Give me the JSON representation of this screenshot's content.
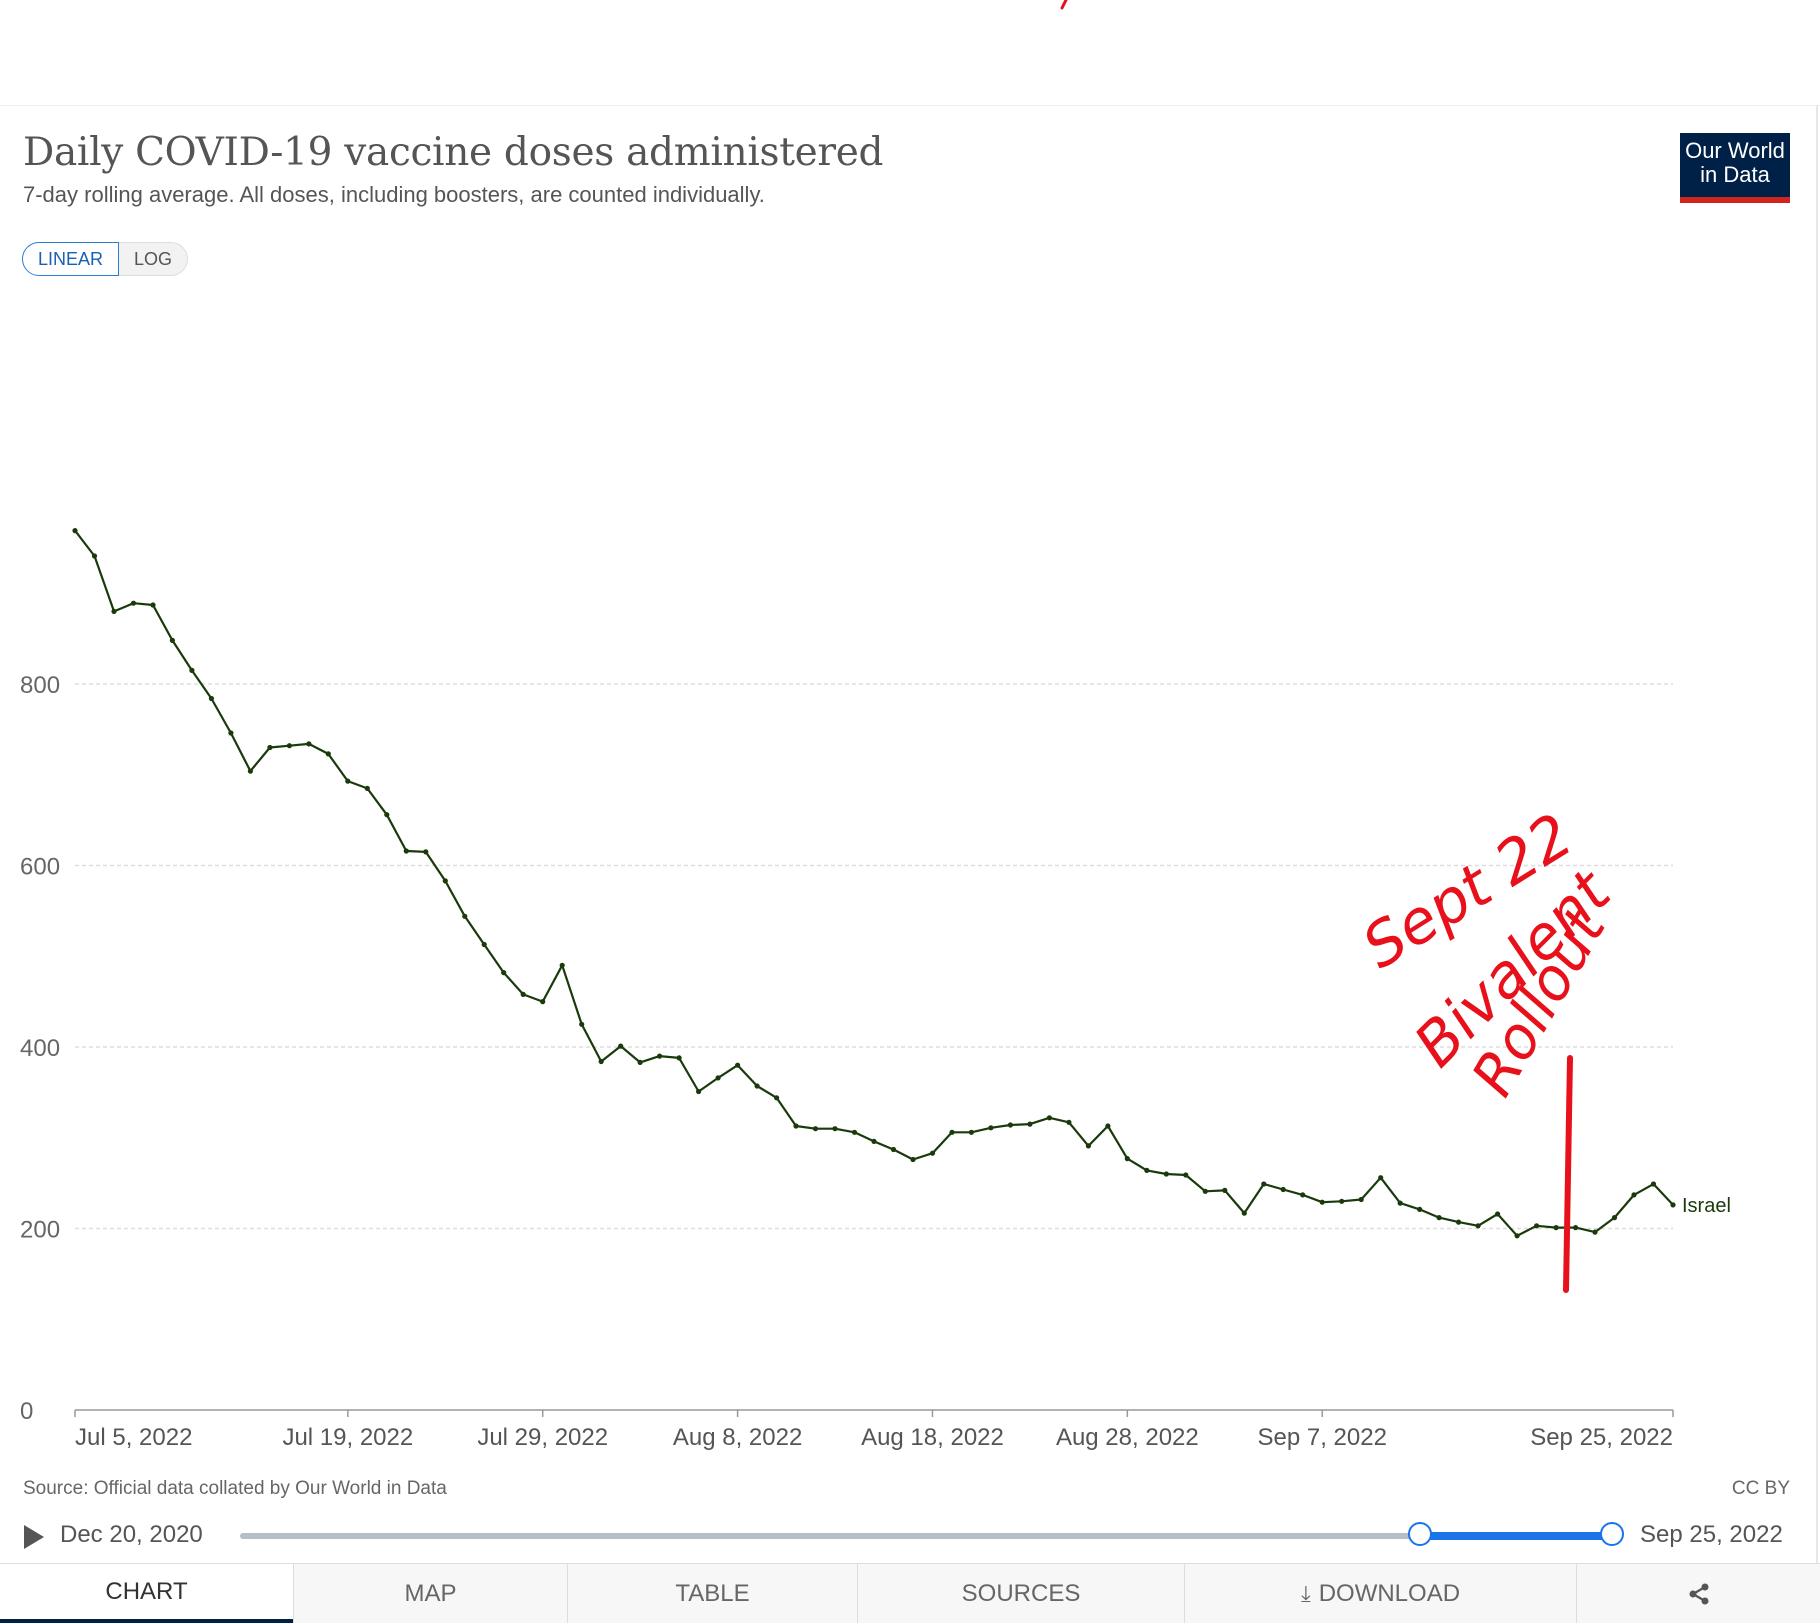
{
  "header": {
    "title": "Daily COVID-19 vaccine doses administered",
    "subtitle": "7-day rolling average. All doses, including boosters, are counted individually.",
    "logo_line1": "Our World",
    "logo_line2": "in Data"
  },
  "scale_toggle": {
    "linear": "LINEAR",
    "log": "LOG",
    "active": "LINEAR"
  },
  "colors": {
    "line": "#1b3a0c",
    "annotation": "#e8111b",
    "logo_bg": "#002147",
    "slider": "#1a73e8"
  },
  "chart_data": {
    "type": "line",
    "title": "Daily COVID-19 vaccine doses administered",
    "subtitle": "7-day rolling average. All doses, including boosters, are counted individually.",
    "ylim": [
      0,
      1000
    ],
    "y_ticks": [
      "0",
      "200",
      "400",
      "600",
      "800"
    ],
    "y_tick_values": [
      0,
      200,
      400,
      600,
      800
    ],
    "x_ticks": [
      "Jul 5, 2022",
      "Jul 19, 2022",
      "Jul 29, 2022",
      "Aug 8, 2022",
      "Aug 18, 2022",
      "Aug 28, 2022",
      "Sep 7, 2022",
      "Sep 25, 2022"
    ],
    "x_tick_dates": [
      "2022-07-05",
      "2022-07-19",
      "2022-07-29",
      "2022-08-08",
      "2022-08-18",
      "2022-08-28",
      "2022-09-07",
      "2022-09-25"
    ],
    "grid": "horizontal dashed",
    "series": [
      {
        "name": "Israel",
        "x_start": "2022-07-05",
        "x_end": "2022-09-25",
        "values": [
          969,
          941,
          880,
          889,
          887,
          848,
          815,
          784,
          746,
          704,
          730,
          732,
          734,
          723,
          693,
          685,
          656,
          616,
          615,
          583,
          544,
          513,
          482,
          458,
          450,
          490,
          425,
          384,
          401,
          383,
          390,
          388,
          351,
          366,
          380,
          357,
          344,
          313,
          310,
          310,
          306,
          296,
          287,
          276,
          283,
          306,
          306,
          311,
          314,
          315,
          322,
          317,
          291,
          313,
          277,
          264,
          260,
          259,
          241,
          242,
          217,
          249,
          243,
          237,
          229,
          230,
          232,
          256,
          228,
          221,
          212,
          207,
          203,
          216,
          192,
          203,
          201,
          201,
          196,
          212,
          237,
          249,
          226
        ]
      }
    ],
    "annotation": {
      "text_line1": "Sept 22",
      "text_line2": "Bivalent",
      "text_line3": "Rollout",
      "date": "2022-09-22"
    }
  },
  "footer": {
    "source": "Source: Official data collated by Our World in Data",
    "license": "CC BY"
  },
  "timeline": {
    "start": "Dec 20, 2020",
    "end": "Sep 25, 2022",
    "selected_start_fraction": 0.86,
    "selected_end_fraction": 1.0
  },
  "tabs": [
    {
      "label": "CHART"
    },
    {
      "label": "MAP"
    },
    {
      "label": "TABLE"
    },
    {
      "label": "SOURCES"
    },
    {
      "label": "DOWNLOAD"
    }
  ]
}
